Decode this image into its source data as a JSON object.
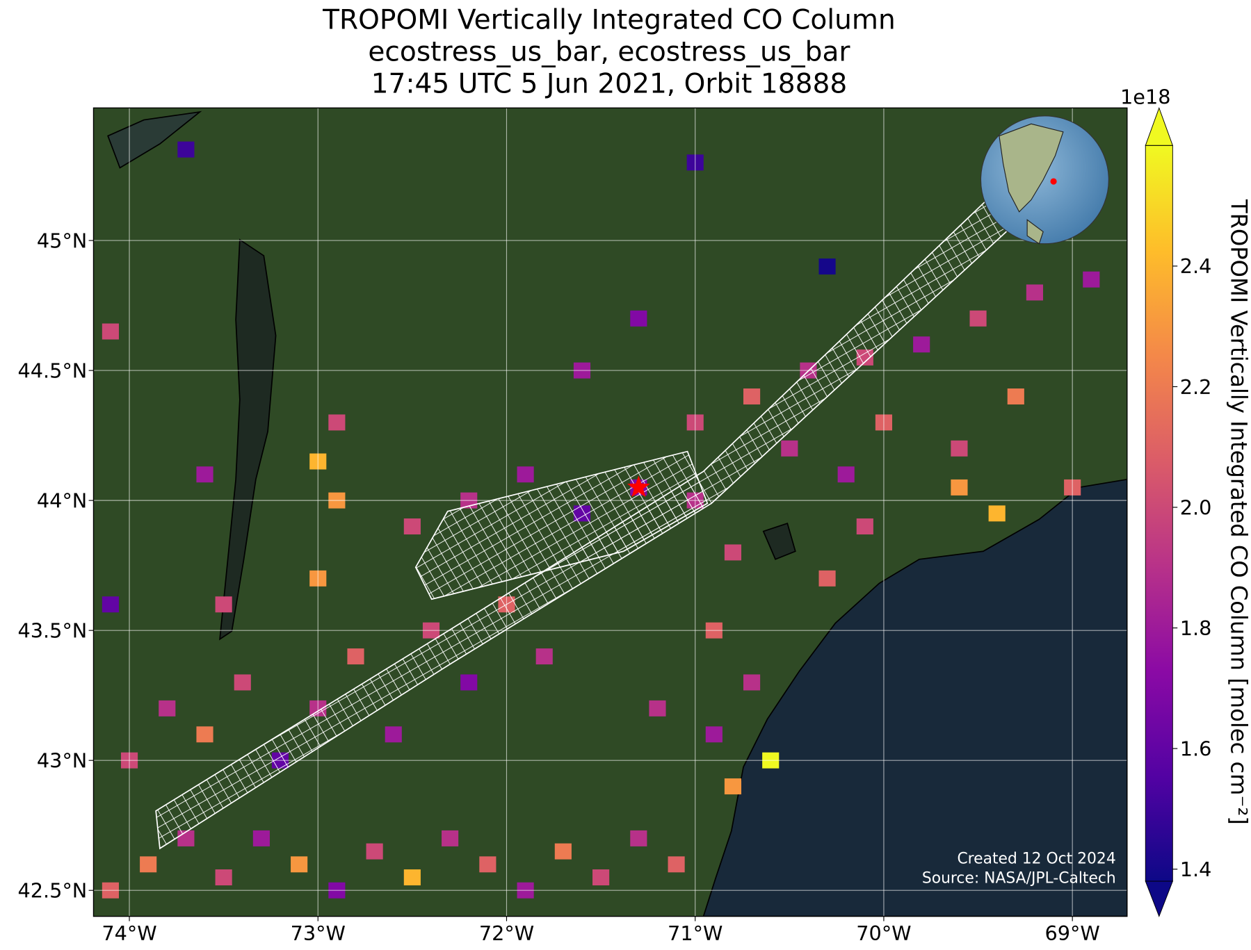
{
  "chart_data": {
    "type": "map",
    "title_lines": [
      "TROPOMI Vertically Integrated CO Column",
      "ecostress_us_bar, ecostress_us_bar",
      "17:45 UTC 5 Jun 2021, Orbit 18888"
    ],
    "xlim": [
      -74.19,
      -68.71
    ],
    "ylim": [
      42.4,
      45.51
    ],
    "xticks": [
      {
        "value": -74,
        "label": "74°W"
      },
      {
        "value": -73,
        "label": "73°W"
      },
      {
        "value": -72,
        "label": "72°W"
      },
      {
        "value": -71,
        "label": "71°W"
      },
      {
        "value": -70,
        "label": "70°W"
      },
      {
        "value": -69,
        "label": "69°W"
      }
    ],
    "yticks": [
      {
        "value": 42.5,
        "label": "42.5°N"
      },
      {
        "value": 43,
        "label": "43°N"
      },
      {
        "value": 43.5,
        "label": "43.5°N"
      },
      {
        "value": 44,
        "label": "44°N"
      },
      {
        "value": 44.5,
        "label": "44.5°N"
      },
      {
        "value": 45,
        "label": "45°N"
      }
    ],
    "grid": true,
    "colorbar": {
      "label": "TROPOMI Vertically Integrated CO Column [molec cm⁻²]",
      "offset_text": "1e18",
      "clim": [
        1.38,
        2.6
      ],
      "ticks": [
        1.4,
        1.6,
        1.8,
        2.0,
        2.2,
        2.4
      ],
      "cmap_colors": [
        "#0d0887",
        "#5302a3",
        "#8b0aa5",
        "#b83289",
        "#db5c68",
        "#f48849",
        "#febd2a",
        "#f0f921"
      ]
    },
    "target": {
      "lon": -71.3,
      "lat": 44.05,
      "color": "#ff0000"
    },
    "cells": [
      [
        -74.1,
        42.5,
        2.1
      ],
      [
        -73.9,
        42.6,
        2.2
      ],
      [
        -73.7,
        42.7,
        1.9
      ],
      [
        -73.5,
        42.55,
        2.0
      ],
      [
        -73.3,
        42.7,
        1.8
      ],
      [
        -73.1,
        42.6,
        2.3
      ],
      [
        -72.9,
        42.5,
        1.7
      ],
      [
        -72.7,
        42.65,
        2.0
      ],
      [
        -72.5,
        42.55,
        2.4
      ],
      [
        -72.3,
        42.7,
        1.9
      ],
      [
        -72.1,
        42.6,
        2.1
      ],
      [
        -71.9,
        42.5,
        1.8
      ],
      [
        -71.7,
        42.65,
        2.2
      ],
      [
        -71.5,
        42.55,
        2.0
      ],
      [
        -71.3,
        42.7,
        1.9
      ],
      [
        -71.1,
        42.6,
        2.1
      ],
      [
        -74.0,
        43.0,
        2.0
      ],
      [
        -73.8,
        43.2,
        1.9
      ],
      [
        -73.6,
        43.1,
        2.2
      ],
      [
        -73.4,
        43.3,
        2.0
      ],
      [
        -73.2,
        43.0,
        1.6
      ],
      [
        -73.0,
        43.2,
        1.9
      ],
      [
        -72.8,
        43.4,
        2.1
      ],
      [
        -72.6,
        43.1,
        1.8
      ],
      [
        -72.4,
        43.5,
        2.0
      ],
      [
        -72.2,
        43.3,
        1.7
      ],
      [
        -72.0,
        43.6,
        2.1
      ],
      [
        -71.8,
        43.4,
        1.9
      ],
      [
        -74.1,
        43.6,
        1.6
      ],
      [
        -73.5,
        43.6,
        2.0
      ],
      [
        -73.0,
        43.7,
        2.3
      ],
      [
        -72.5,
        43.9,
        2.0
      ],
      [
        -72.2,
        44.0,
        1.9
      ],
      [
        -71.9,
        44.1,
        1.8
      ],
      [
        -71.6,
        43.95,
        1.6
      ],
      [
        -71.3,
        44.05,
        1.7
      ],
      [
        -71.0,
        44.0,
        1.9
      ],
      [
        -70.8,
        43.8,
        2.0
      ],
      [
        -70.9,
        43.5,
        2.1
      ],
      [
        -70.7,
        43.3,
        1.9
      ],
      [
        -70.6,
        43.0,
        2.6
      ],
      [
        -70.8,
        42.9,
        2.3
      ],
      [
        -70.9,
        43.1,
        1.8
      ],
      [
        -71.2,
        43.2,
        1.9
      ],
      [
        -71.0,
        44.3,
        2.0
      ],
      [
        -70.7,
        44.4,
        2.1
      ],
      [
        -70.4,
        44.5,
        1.9
      ],
      [
        -70.1,
        44.55,
        2.0
      ],
      [
        -69.8,
        44.6,
        1.8
      ],
      [
        -69.5,
        44.7,
        2.0
      ],
      [
        -69.2,
        44.8,
        1.9
      ],
      [
        -68.9,
        44.85,
        1.8
      ],
      [
        -70.0,
        44.3,
        2.1
      ],
      [
        -69.6,
        44.2,
        2.0
      ],
      [
        -69.3,
        44.4,
        2.2
      ],
      [
        -69.6,
        44.05,
        2.3
      ],
      [
        -69.4,
        43.95,
        2.4
      ],
      [
        -69.0,
        44.05,
        2.1
      ],
      [
        -70.2,
        44.1,
        1.8
      ],
      [
        -70.5,
        44.2,
        1.9
      ],
      [
        -71.3,
        44.7,
        1.7
      ],
      [
        -71.6,
        44.5,
        1.8
      ],
      [
        -72.9,
        44.3,
        2.0
      ],
      [
        -73.0,
        44.15,
        2.4
      ],
      [
        -72.9,
        44.0,
        2.3
      ],
      [
        -73.6,
        44.1,
        1.8
      ],
      [
        -74.1,
        44.65,
        2.0
      ],
      [
        -73.7,
        45.35,
        1.5
      ],
      [
        -71.0,
        45.3,
        1.5
      ],
      [
        -70.3,
        44.9,
        1.4
      ],
      [
        -70.1,
        43.9,
        2.0
      ],
      [
        -70.3,
        43.7,
        2.1
      ]
    ],
    "credits": [
      "Created 12 Oct 2024",
      "Source: NASA/JPL-Caltech"
    ]
  }
}
